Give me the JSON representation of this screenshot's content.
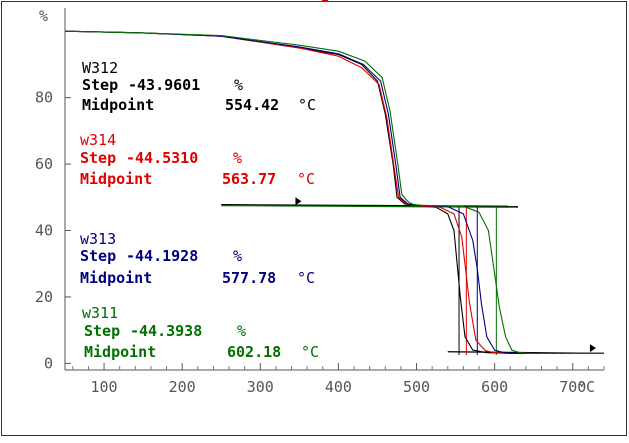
{
  "chart_data": {
    "type": "line",
    "title": "",
    "xlabel": "",
    "ylabel": "",
    "x_unit": "°C",
    "y_unit": "%",
    "xlim": [
      50,
      740
    ],
    "ylim": [
      -2,
      107
    ],
    "x_ticks": [
      100,
      200,
      300,
      400,
      500,
      600,
      700
    ],
    "x_tick_labels": [
      "100",
      "200",
      "300",
      "400",
      "500",
      "600",
      "700"
    ],
    "y_ticks": [
      0,
      20,
      40,
      60,
      80
    ],
    "y_tick_labels": [
      "0",
      "20",
      "40",
      "60",
      "80"
    ],
    "step_rows": [
      {
        "name": "W312",
        "color": "#000000",
        "step_label": "Step",
        "step_value": "-43.9601",
        "step_unit": "%",
        "mid_label": "Midpoint",
        "mid_value": "554.42",
        "mid_unit": "°C"
      },
      {
        "name": "w314",
        "color": "#e00000",
        "step_label": "Step",
        "step_value": "-44.5310",
        "step_unit": "%",
        "mid_label": "Midpoint",
        "mid_value": "563.77",
        "mid_unit": "°C"
      },
      {
        "name": "w313",
        "color": "#000080",
        "step_label": "Step",
        "step_value": "-44.1928",
        "step_unit": "%",
        "mid_label": "Midpoint",
        "mid_value": "577.78",
        "mid_unit": "°C"
      },
      {
        "name": "w311",
        "color": "#007000",
        "step_label": "Step",
        "step_value": "-44.3938",
        "step_unit": "%",
        "mid_label": "Midpoint",
        "mid_value": "602.18",
        "mid_unit": "°C"
      }
    ],
    "series": [
      {
        "name": "W312",
        "color": "#000000",
        "x": [
          50,
          150,
          250,
          350,
          400,
          430,
          450,
          460,
          470,
          475,
          480,
          485,
          490,
          495,
          500,
          525,
          540,
          548,
          552,
          556,
          562,
          572,
          590,
          620,
          740
        ],
        "y": [
          100,
          99.5,
          98.5,
          95,
          93,
          90,
          85,
          75,
          60,
          50,
          49,
          48,
          47.8,
          47.5,
          47.5,
          47,
          45,
          40,
          30,
          20,
          8,
          4,
          3.2,
          3,
          3
        ]
      },
      {
        "name": "w314",
        "color": "#e00000",
        "x": [
          50,
          150,
          250,
          350,
          400,
          430,
          452,
          462,
          472,
          477,
          482,
          487,
          492,
          497,
          502,
          530,
          548,
          558,
          563,
          568,
          576,
          588,
          600,
          625,
          740
        ],
        "y": [
          100,
          99.5,
          98.5,
          95,
          92.5,
          89,
          84,
          74,
          58,
          50,
          49,
          48,
          47.7,
          47.5,
          47.5,
          47,
          45,
          38,
          28,
          18,
          7,
          3.8,
          3.2,
          3,
          3
        ]
      },
      {
        "name": "w313",
        "color": "#000080",
        "x": [
          50,
          150,
          250,
          350,
          400,
          432,
          454,
          464,
          474,
          479,
          484,
          489,
          494,
          499,
          504,
          540,
          560,
          572,
          578,
          583,
          590,
          600,
          612,
          632,
          740
        ],
        "y": [
          100,
          99.5,
          98.5,
          95.3,
          93.2,
          90,
          85,
          75,
          59,
          50,
          49,
          48,
          47.8,
          47.6,
          47.6,
          47.2,
          45,
          37,
          28,
          18,
          8,
          4,
          3.2,
          3,
          3
        ]
      },
      {
        "name": "w311",
        "color": "#007000",
        "x": [
          50,
          150,
          250,
          350,
          400,
          434,
          456,
          466,
          476,
          481,
          486,
          491,
          496,
          501,
          506,
          560,
          580,
          592,
          600,
          606,
          614,
          622,
          632,
          645,
          740
        ],
        "y": [
          100,
          99.5,
          98.7,
          95.8,
          94,
          91,
          86,
          76,
          60,
          51,
          49.5,
          48.3,
          47.9,
          47.7,
          47.6,
          47.3,
          45.5,
          40,
          27,
          17,
          8,
          4,
          3.2,
          3,
          3
        ]
      }
    ],
    "tangents": [
      {
        "color": "#000000",
        "x": [
          250,
          630
        ],
        "y": [
          47.8,
          47.3
        ]
      },
      {
        "color": "#007000",
        "x": [
          250,
          630
        ],
        "y": [
          47.5,
          47.0
        ]
      },
      {
        "color": "#000000",
        "x": [
          540,
          740
        ],
        "y": [
          3.5,
          3.0
        ]
      }
    ],
    "midpoint_lines": [
      {
        "color": "#000000",
        "x": 554.42,
        "y": [
          2.5,
          47
        ]
      },
      {
        "color": "#e00000",
        "x": 563.77,
        "y": [
          2.5,
          47
        ]
      },
      {
        "color": "#000080",
        "x": 577.78,
        "y": [
          2.5,
          47
        ]
      },
      {
        "color": "#007000",
        "x": 602.18,
        "y": [
          2.5,
          47
        ]
      }
    ],
    "markers": [
      {
        "x": 345,
        "y": 48.5
      },
      {
        "x": 722,
        "y": 4.3
      }
    ],
    "grid": false,
    "legend": "left"
  }
}
